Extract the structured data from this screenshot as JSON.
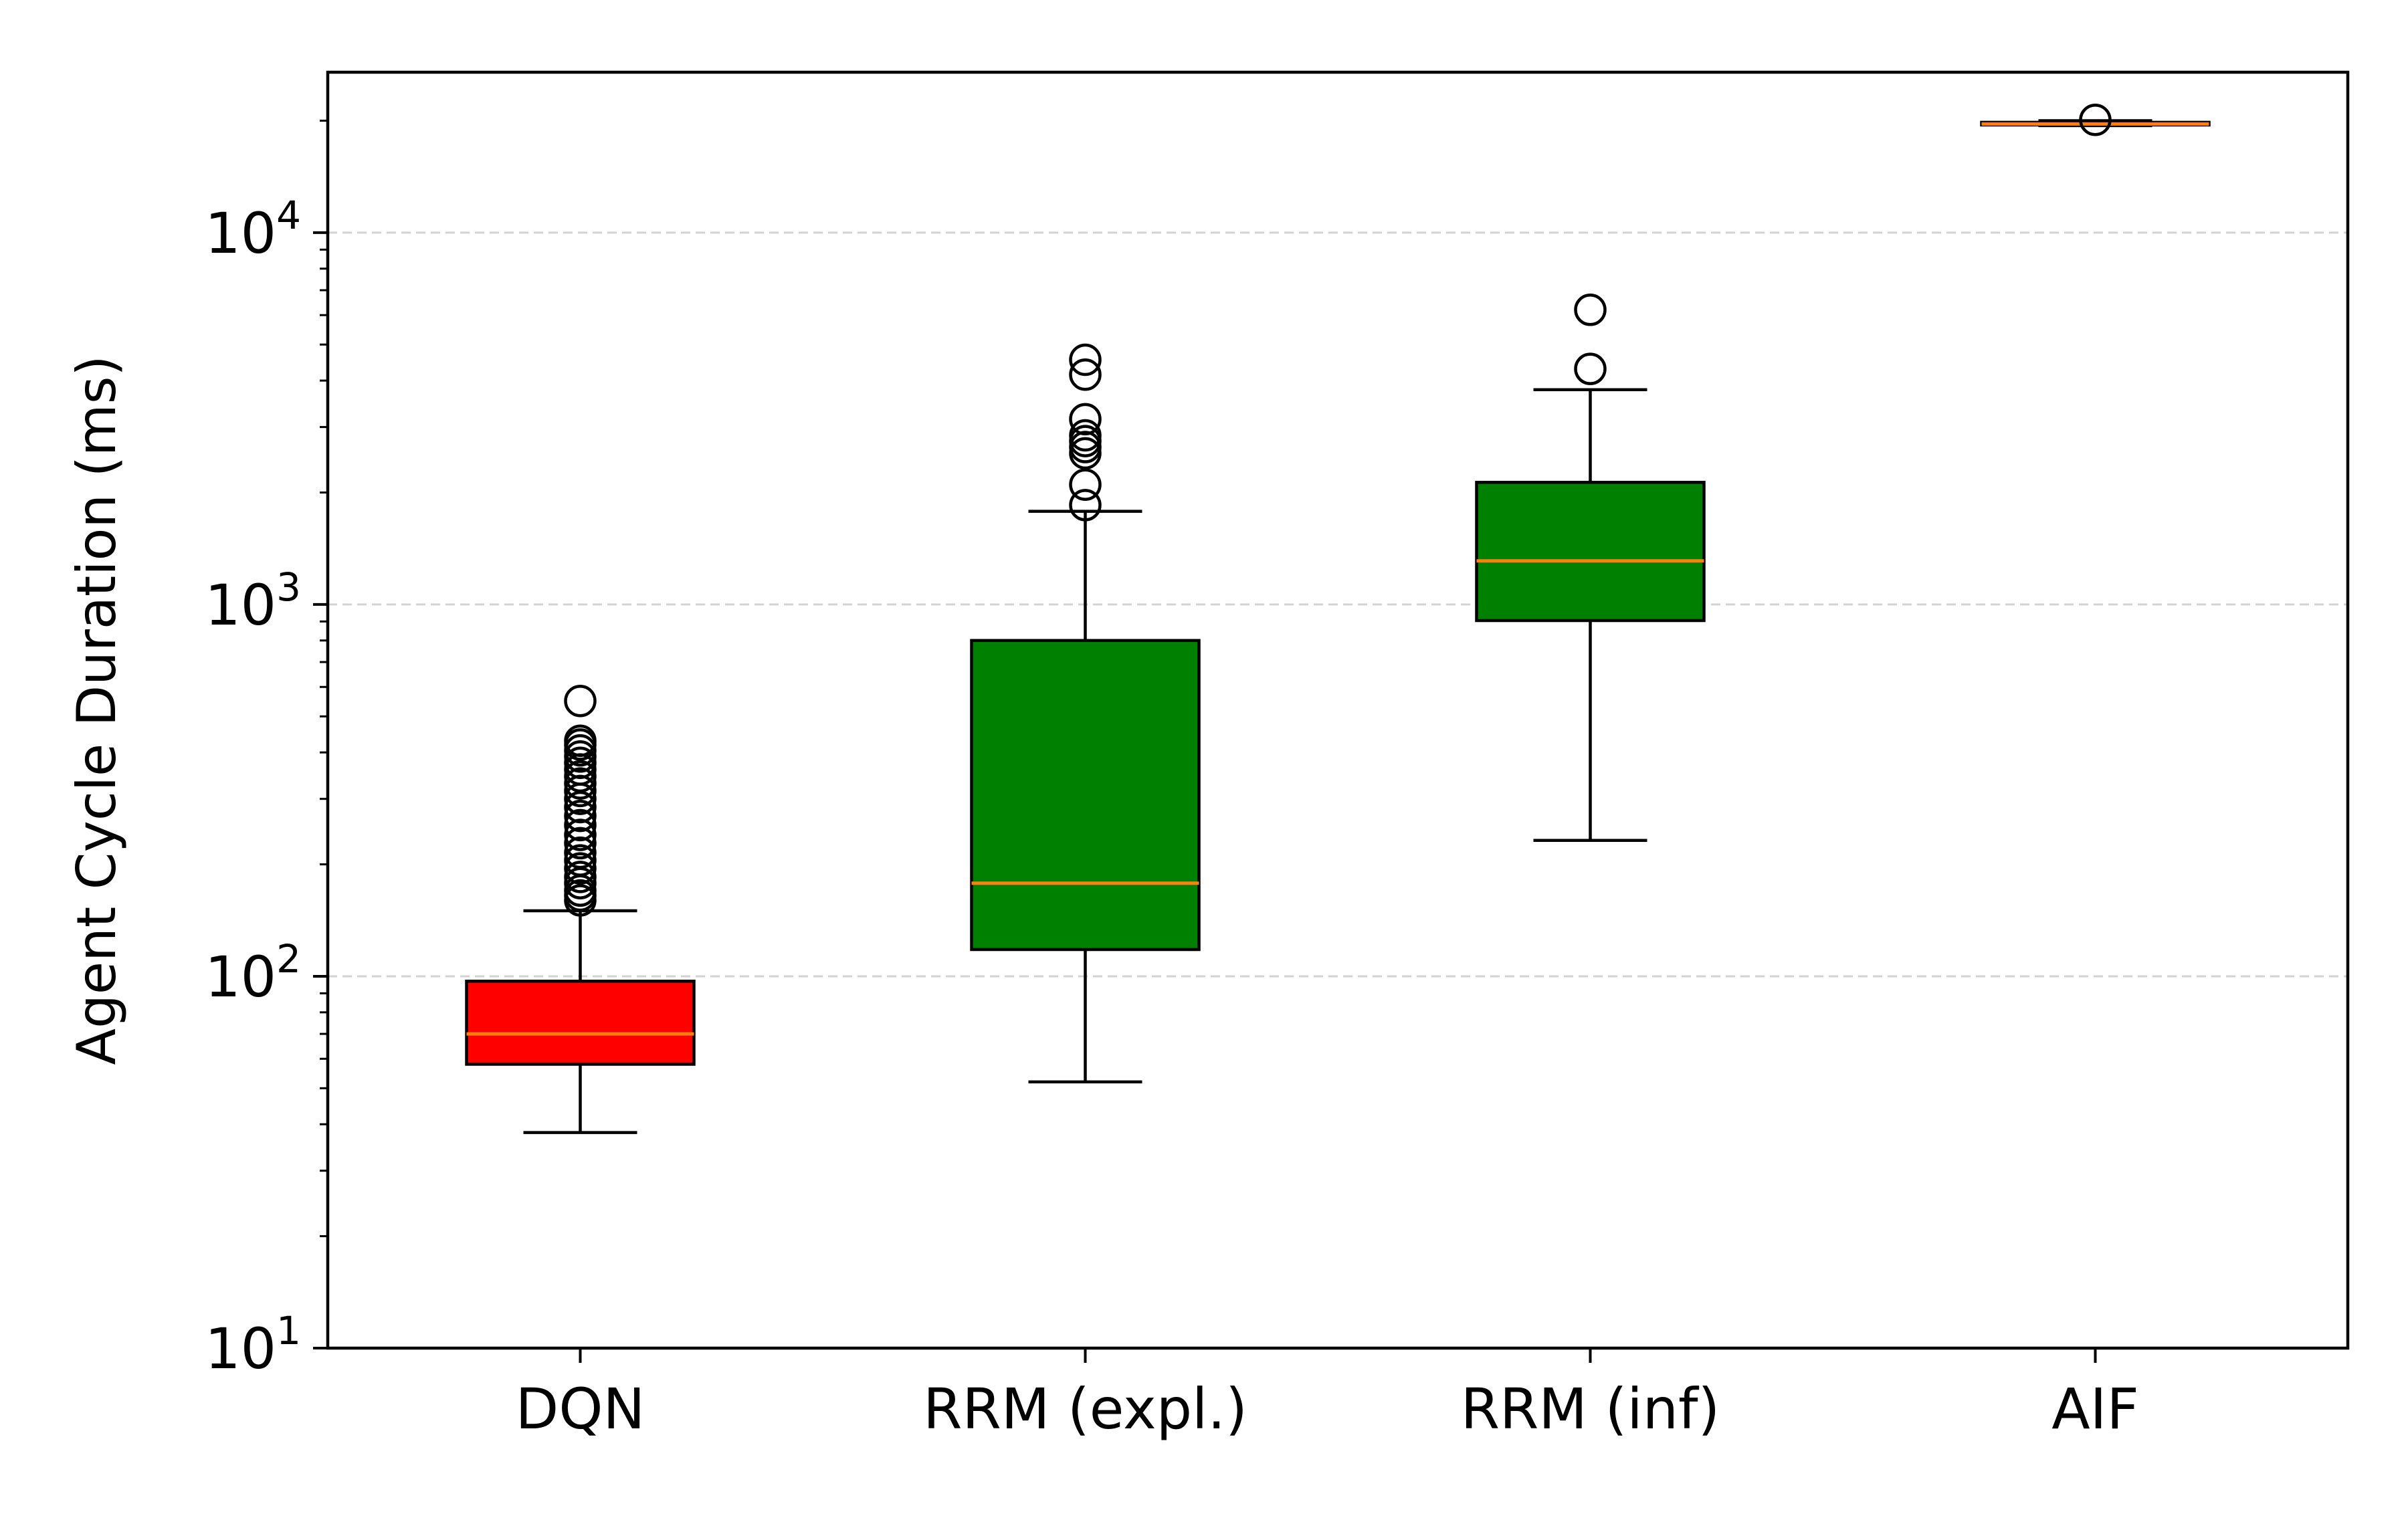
{
  "chart_data": {
    "type": "box",
    "title": "",
    "xlabel": "",
    "ylabel": "Agent Cycle Duration (ms)",
    "yscale": "log",
    "ylim": [
      10,
      27000
    ],
    "y_ticks": [
      {
        "value": 10,
        "base": "10",
        "exp": "1"
      },
      {
        "value": 100,
        "base": "10",
        "exp": "2"
      },
      {
        "value": 1000,
        "base": "10",
        "exp": "3"
      },
      {
        "value": 10000,
        "base": "10",
        "exp": "4"
      }
    ],
    "grid": "horizontal dashed at major ticks",
    "categories": [
      "DQN",
      "RRM (expl.)",
      "RRM (inf)",
      "AIF"
    ],
    "boxes": [
      {
        "label": "DQN",
        "color": "#ff0000",
        "whisker_low": 38,
        "q1": 58,
        "median": 70,
        "q3": 97,
        "whisker_high": 150,
        "outliers": [
          160,
          165,
          170,
          178,
          185,
          195,
          205,
          215,
          228,
          240,
          255,
          270,
          285,
          300,
          315,
          330,
          345,
          360,
          375,
          390,
          405,
          420,
          430,
          550
        ]
      },
      {
        "label": "RRM (expl.)",
        "color": "#008000",
        "whisker_low": 52,
        "q1": 118,
        "median": 178,
        "q3": 800,
        "whisker_high": 1780,
        "outliers": [
          1850,
          2100,
          2550,
          2650,
          2750,
          2850,
          3150,
          4150,
          4550
        ]
      },
      {
        "label": "RRM (inf)",
        "color": "#008000",
        "whisker_low": 232,
        "q1": 905,
        "median": 1310,
        "q3": 2130,
        "whisker_high": 3780,
        "outliers": [
          4300,
          6200
        ]
      },
      {
        "label": "AIF",
        "color": "#ff7f0e",
        "whisker_low": 19400,
        "q1": 19500,
        "median": 19600,
        "q3": 19800,
        "whisker_high": 20000,
        "outliers": [
          20100
        ]
      }
    ],
    "median_line_color": "#ff7f0e"
  }
}
